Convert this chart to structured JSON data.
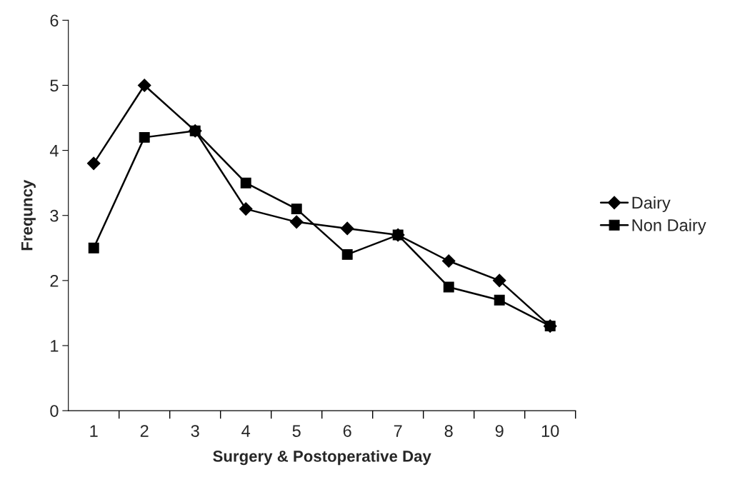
{
  "chart_data": {
    "type": "line",
    "xlabel": "Surgery & Postoperative Day",
    "ylabel": "Frequncy",
    "categories": [
      "1",
      "2",
      "3",
      "4",
      "5",
      "6",
      "7",
      "8",
      "9",
      "10"
    ],
    "series": [
      {
        "name": "Dairy",
        "color": "#000000",
        "marker": "diamond",
        "values": [
          3.8,
          5.0,
          4.3,
          3.1,
          2.9,
          2.8,
          2.7,
          2.3,
          2.0,
          1.3
        ]
      },
      {
        "name": "Non Dairy",
        "color": "#000000",
        "marker": "square",
        "values": [
          2.5,
          4.2,
          4.3,
          3.5,
          3.1,
          2.4,
          2.7,
          1.9,
          1.7,
          1.3
        ]
      }
    ],
    "ylim": [
      0,
      6
    ],
    "yticks": [
      0,
      1,
      2,
      3,
      4,
      5,
      6
    ],
    "grid": false,
    "legend": "right"
  }
}
